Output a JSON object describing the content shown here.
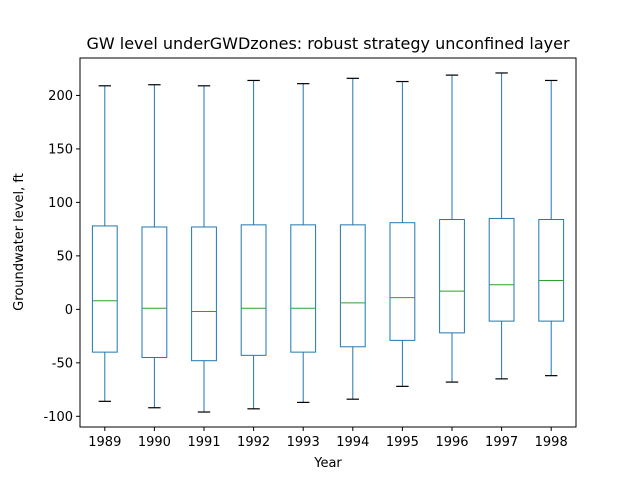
{
  "chart_data": {
    "type": "box",
    "title": "GW level underGWDzones: robust strategy unconfined layer",
    "xlabel": "Year",
    "ylabel": "Groundwater level, ft",
    "ylim": [
      -110,
      235
    ],
    "yticks": [
      -100,
      -50,
      0,
      50,
      100,
      150,
      200
    ],
    "grid": false,
    "colors": {
      "box": "#1f77b4",
      "median": "#2ca02c",
      "cap": "#000000",
      "frame": "#000000"
    },
    "categories": [
      "1989",
      "1990",
      "1991",
      "1992",
      "1993",
      "1994",
      "1995",
      "1996",
      "1997",
      "1998"
    ],
    "boxes": [
      {
        "label": "1989",
        "min": -86,
        "q1": -40,
        "median": 8,
        "q3": 78,
        "max": 209
      },
      {
        "label": "1990",
        "min": -92,
        "q1": -45,
        "median": 1,
        "q3": 77,
        "max": 210
      },
      {
        "label": "1991",
        "min": -96,
        "q1": -48,
        "median": -2,
        "q3": 77,
        "max": 209
      },
      {
        "label": "1992",
        "min": -93,
        "q1": -43,
        "median": 1,
        "q3": 79,
        "max": 214
      },
      {
        "label": "1993",
        "min": -87,
        "q1": -40,
        "median": 1,
        "q3": 79,
        "max": 211
      },
      {
        "label": "1994",
        "min": -84,
        "q1": -35,
        "median": 6,
        "q3": 79,
        "max": 216
      },
      {
        "label": "1995",
        "min": -72,
        "q1": -29,
        "median": 11,
        "q3": 81,
        "max": 213
      },
      {
        "label": "1996",
        "min": -68,
        "q1": -22,
        "median": 17,
        "q3": 84,
        "max": 219
      },
      {
        "label": "1997",
        "min": -65,
        "q1": -11,
        "median": 23,
        "q3": 85,
        "max": 221
      },
      {
        "label": "1998",
        "min": -62,
        "q1": -11,
        "median": 27,
        "q3": 84,
        "max": 214
      }
    ]
  }
}
